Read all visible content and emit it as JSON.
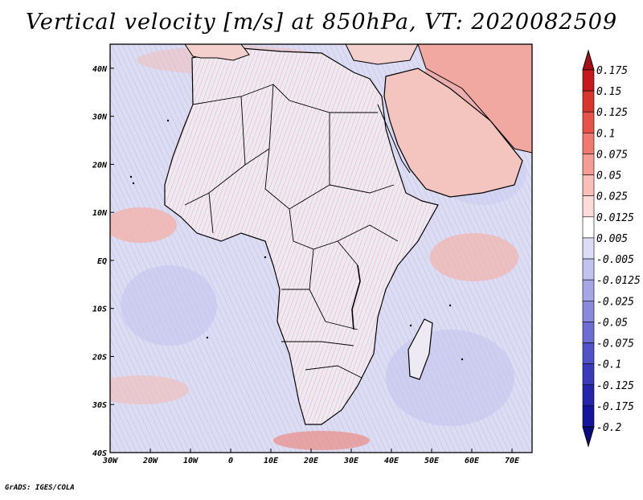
{
  "title": "Vertical velocity [m/s] at 850hPa, VT: 2020082509",
  "footer": "GrADS: IGES/COLA",
  "map": {
    "lon_range": [
      -30,
      75
    ],
    "lat_range": [
      -40,
      45
    ],
    "lon_ticks": [
      {
        "value": -30,
        "label": "30W"
      },
      {
        "value": -20,
        "label": "20W"
      },
      {
        "value": -10,
        "label": "10W"
      },
      {
        "value": 0,
        "label": "0"
      },
      {
        "value": 10,
        "label": "10E"
      },
      {
        "value": 20,
        "label": "20E"
      },
      {
        "value": 30,
        "label": "30E"
      },
      {
        "value": 40,
        "label": "40E"
      },
      {
        "value": 50,
        "label": "50E"
      },
      {
        "value": 60,
        "label": "60E"
      },
      {
        "value": 70,
        "label": "70E"
      }
    ],
    "lat_ticks": [
      {
        "value": 40,
        "label": "40N"
      },
      {
        "value": 30,
        "label": "30N"
      },
      {
        "value": 20,
        "label": "20N"
      },
      {
        "value": 10,
        "label": "10N"
      },
      {
        "value": 0,
        "label": "EQ"
      },
      {
        "value": -10,
        "label": "10S"
      },
      {
        "value": -20,
        "label": "20S"
      },
      {
        "value": -30,
        "label": "30S"
      },
      {
        "value": -40,
        "label": "40S"
      }
    ],
    "land_color": "#eeeaf4",
    "sea_color": "#dcdcf3",
    "coast_color": "#000000"
  },
  "colorbar": {
    "levels": [
      "0.175",
      "0.15",
      "0.125",
      "0.1",
      "0.075",
      "0.05",
      "0.025",
      "0.0125",
      "0.005",
      "-0.005",
      "-0.0125",
      "-0.025",
      "-0.05",
      "-0.075",
      "-0.1",
      "-0.125",
      "-0.175",
      "-0.2"
    ],
    "colors": [
      "#a50f15",
      "#c41a1d",
      "#d9352f",
      "#e5534a",
      "#ef7a70",
      "#f49d95",
      "#f8bfb8",
      "#fbdcd8",
      "#ffffff",
      "#dcdcf6",
      "#c3c3ef",
      "#a6a6e6",
      "#8a8adc",
      "#6e6ed2",
      "#5252c7",
      "#3a3abb",
      "#2525ac",
      "#14149c",
      "#0a0a85"
    ]
  }
}
